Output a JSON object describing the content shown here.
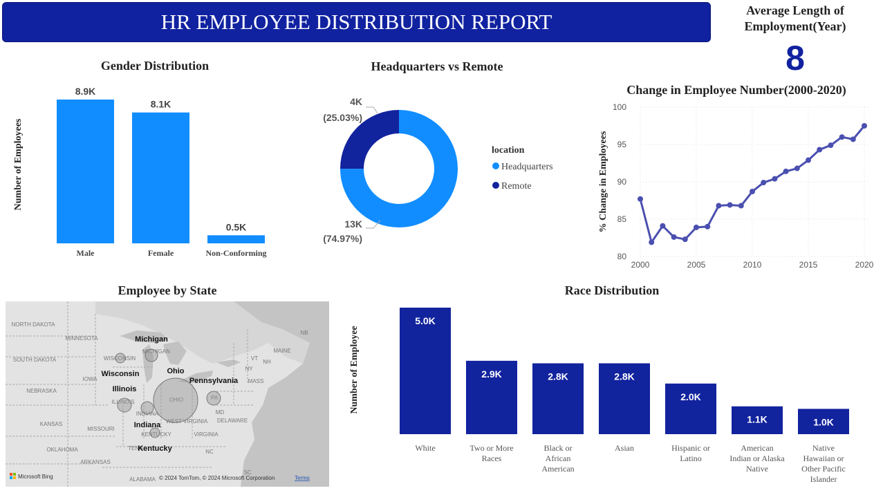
{
  "header": {
    "title": "HR EMPLOYEE DISTRIBUTION REPORT"
  },
  "kpi": {
    "label": "Average Length of Employment(Year)",
    "value": "8"
  },
  "gender": {
    "title": "Gender Distribution",
    "ylabel": "Number of Employees",
    "colors": {
      "bar": "#118dff"
    }
  },
  "location": {
    "title": "Headquarters vs Remote",
    "legend_title": "location",
    "colors": {
      "Headquarters": "#118dff",
      "Remote": "#12239e"
    }
  },
  "change": {
    "title": "Change in Employee Number(2000-2020)",
    "ylabel": "% Change in Employees",
    "colors": {
      "line": "#4a4fb0"
    }
  },
  "state_map": {
    "title": "Employee by State",
    "attribution": "© 2024 TomTom, © 2024 Microsoft Corporation",
    "terms": "Terms",
    "bing": "Microsoft Bing",
    "region_labels": [
      "NORTH DAKOTA",
      "MINNESOTA",
      "SOUTH DAKOTA",
      "WISCONSIN",
      "MICHIGAN",
      "IOWA",
      "NEBRASKA",
      "ILLINOIS",
      "INDIANA",
      "OHIO",
      "KANSAS",
      "MISSOURI",
      "KENTUCKY",
      "OKLAHOMA",
      "ARKANSAS",
      "TENN",
      "ALABAMA",
      "NC",
      "SC",
      "VIRGINIA",
      "WEST VIRGINIA",
      "MD",
      "DELAWARE",
      "PA",
      "NY",
      "VT",
      "NH",
      "MAINE",
      "MASS",
      "NB"
    ],
    "states": [
      "Michigan",
      "Wisconsin",
      "Ohio",
      "Pennsylvania",
      "Illinois",
      "Indiana",
      "Kentucky"
    ]
  },
  "race": {
    "title": "Race Distribution",
    "ylabel": "Number of Employee",
    "colors": {
      "bar": "#12239e"
    }
  },
  "chart_data": [
    {
      "type": "bar",
      "title": "Gender Distribution",
      "ylabel": "Number of Employees",
      "categories": [
        "Male",
        "Female",
        "Non-Conforming"
      ],
      "values": [
        8.9,
        8.1,
        0.5
      ],
      "data_labels": [
        "8.9K",
        "8.1K",
        "0.5K"
      ]
    },
    {
      "type": "pie",
      "title": "Headquarters vs Remote",
      "legend_title": "location",
      "categories": [
        "Headquarters",
        "Remote"
      ],
      "values": [
        13,
        4
      ],
      "percent": [
        74.97,
        25.03
      ],
      "data_labels": [
        "13K",
        "4K"
      ],
      "percent_labels": [
        "(74.97%)",
        "(25.03%)"
      ],
      "legend": "right"
    },
    {
      "type": "line",
      "title": "Change in Employee Number(2000-2020)",
      "ylabel": "% Change in Employees",
      "x": [
        2000,
        2001,
        2002,
        2003,
        2004,
        2005,
        2006,
        2007,
        2008,
        2009,
        2010,
        2011,
        2012,
        2013,
        2014,
        2015,
        2016,
        2017,
        2018,
        2019,
        2020
      ],
      "y": [
        87.7,
        81.9,
        84.1,
        82.6,
        82.3,
        83.9,
        84.0,
        86.8,
        86.9,
        86.8,
        88.7,
        89.9,
        90.4,
        91.4,
        91.8,
        92.9,
        94.3,
        94.9,
        96.0,
        95.7,
        97.5
      ],
      "xticks": [
        "2000",
        "2005",
        "2010",
        "2015",
        "2020"
      ],
      "yticks": [
        "80",
        "85",
        "90",
        "95",
        "100"
      ],
      "ylim": [
        80,
        100
      ],
      "grid": true
    },
    {
      "type": "bar",
      "title": "Race Distribution",
      "ylabel": "Number of Employee",
      "categories": [
        "White",
        "Two or More Races",
        "Black or African American",
        "Asian",
        "Hispanic or Latino",
        "American Indian or Alaska Native",
        "Native Hawaiian or Other Pacific Islander"
      ],
      "values": [
        5.0,
        2.9,
        2.8,
        2.8,
        2.0,
        1.1,
        1.0
      ],
      "data_labels": [
        "5.0K",
        "2.9K",
        "2.8K",
        "2.8K",
        "2.0K",
        "1.1K",
        "1.0K"
      ]
    }
  ]
}
